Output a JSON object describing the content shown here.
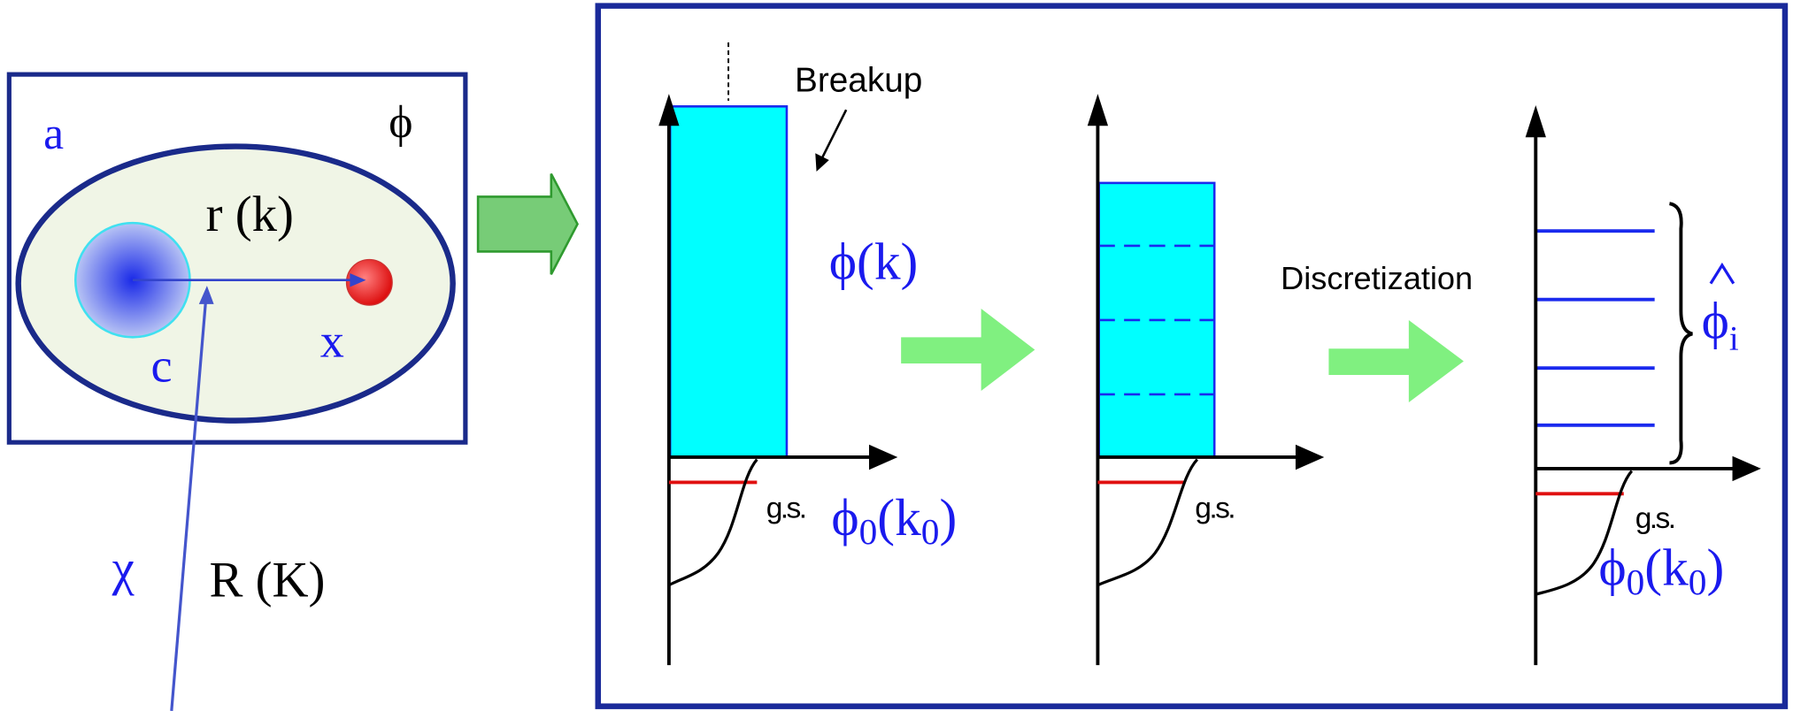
{
  "left": {
    "a": "a",
    "phi": "ϕ",
    "r": "r (k)",
    "c": "c",
    "x": "x",
    "chi": "χ",
    "R": "R (K)"
  },
  "right": {
    "breakup": "Breakup",
    "phi_k": [
      "ϕ",
      "(k)"
    ],
    "discretization": "Discretization",
    "panels": [
      {
        "gs": "g.s.",
        "label": [
          "ϕ",
          "0",
          "(k",
          "0",
          ")"
        ]
      },
      {
        "gs": "g.s."
      },
      {
        "gs": "g.s.",
        "label": [
          "ϕ",
          "0",
          "(k",
          "0",
          ")"
        ],
        "phi_i": [
          "ϕ",
          "i"
        ]
      }
    ]
  }
}
